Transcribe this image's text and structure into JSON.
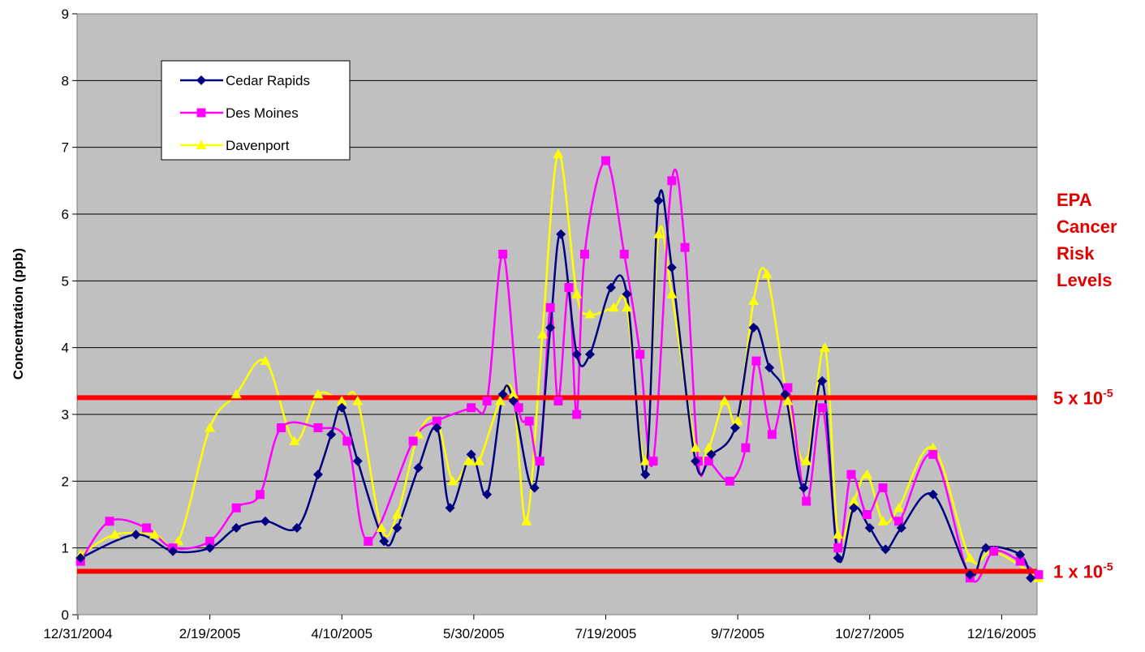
{
  "chart_data": {
    "type": "line",
    "title": "",
    "xlabel": "",
    "ylabel": "Concentration (ppb)",
    "ylim": [
      0,
      9
    ],
    "yticks": [
      "0",
      "1",
      "2",
      "3",
      "4",
      "5",
      "6",
      "7",
      "8",
      "9"
    ],
    "xticks": [
      "12/31/2004",
      "2/19/2005",
      "4/10/2005",
      "5/30/2005",
      "7/19/2005",
      "9/7/2005",
      "10/27/2005",
      "12/16/2005"
    ],
    "x_is_date": true,
    "grid": "horizontal",
    "legend_position": "top-left",
    "background": "#c0c0c0",
    "series": [
      {
        "name": "Cedar Rapids",
        "color": "#000080",
        "marker": "diamond",
        "points": [
          [
            "2005-01-01",
            0.85
          ],
          [
            "2005-01-22",
            1.2
          ],
          [
            "2005-02-05",
            0.95
          ],
          [
            "2005-02-19",
            1.0
          ],
          [
            "2005-03-01",
            1.3
          ],
          [
            "2005-03-12",
            1.4
          ],
          [
            "2005-03-24",
            1.3
          ],
          [
            "2005-04-01",
            2.1
          ],
          [
            "2005-04-06",
            2.7
          ],
          [
            "2005-04-10",
            3.1
          ],
          [
            "2005-04-16",
            2.3
          ],
          [
            "2005-04-26",
            1.1
          ],
          [
            "2005-05-01",
            1.3
          ],
          [
            "2005-05-09",
            2.2
          ],
          [
            "2005-05-16",
            2.8
          ],
          [
            "2005-05-21",
            1.6
          ],
          [
            "2005-05-29",
            2.4
          ],
          [
            "2005-06-04",
            1.8
          ],
          [
            "2005-06-10",
            3.3
          ],
          [
            "2005-06-14",
            3.2
          ],
          [
            "2005-06-22",
            1.9
          ],
          [
            "2005-06-28",
            4.3
          ],
          [
            "2005-07-02",
            5.7
          ],
          [
            "2005-07-08",
            3.9
          ],
          [
            "2005-07-13",
            3.9
          ],
          [
            "2005-07-21",
            4.9
          ],
          [
            "2005-07-27",
            4.8
          ],
          [
            "2005-08-03",
            2.1
          ],
          [
            "2005-08-08",
            6.2
          ],
          [
            "2005-08-13",
            5.2
          ],
          [
            "2005-08-22",
            2.3
          ],
          [
            "2005-08-28",
            2.4
          ],
          [
            "2005-09-06",
            2.8
          ],
          [
            "2005-09-13",
            4.3
          ],
          [
            "2005-09-19",
            3.7
          ],
          [
            "2005-09-25",
            3.3
          ],
          [
            "2005-10-02",
            1.9
          ],
          [
            "2005-10-09",
            3.5
          ],
          [
            "2005-10-15",
            0.85
          ],
          [
            "2005-10-21",
            1.6
          ],
          [
            "2005-10-27",
            1.3
          ],
          [
            "2005-11-02",
            0.98
          ],
          [
            "2005-11-08",
            1.3
          ],
          [
            "2005-11-20",
            1.8
          ],
          [
            "2005-12-04",
            0.6
          ],
          [
            "2005-12-10",
            1.0
          ],
          [
            "2005-12-23",
            0.9
          ],
          [
            "2005-12-27",
            0.55
          ]
        ]
      },
      {
        "name": "Des Moines",
        "color": "#ff00ff",
        "marker": "square",
        "points": [
          [
            "2005-01-01",
            0.8
          ],
          [
            "2005-01-12",
            1.4
          ],
          [
            "2005-01-26",
            1.3
          ],
          [
            "2005-02-05",
            1.0
          ],
          [
            "2005-02-19",
            1.1
          ],
          [
            "2005-03-01",
            1.6
          ],
          [
            "2005-03-10",
            1.8
          ],
          [
            "2005-03-18",
            2.8
          ],
          [
            "2005-04-01",
            2.8
          ],
          [
            "2005-04-12",
            2.6
          ],
          [
            "2005-04-20",
            1.1
          ],
          [
            "2005-05-07",
            2.6
          ],
          [
            "2005-05-16",
            2.9
          ],
          [
            "2005-05-29",
            3.1
          ],
          [
            "2005-06-04",
            3.2
          ],
          [
            "2005-06-10",
            5.4
          ],
          [
            "2005-06-16",
            3.1
          ],
          [
            "2005-06-20",
            2.9
          ],
          [
            "2005-06-24",
            2.3
          ],
          [
            "2005-06-28",
            4.6
          ],
          [
            "2005-07-01",
            3.2
          ],
          [
            "2005-07-05",
            4.9
          ],
          [
            "2005-07-08",
            3.0
          ],
          [
            "2005-07-11",
            5.4
          ],
          [
            "2005-07-19",
            6.8
          ],
          [
            "2005-07-26",
            5.4
          ],
          [
            "2005-08-01",
            3.9
          ],
          [
            "2005-08-06",
            2.3
          ],
          [
            "2005-08-13",
            6.5
          ],
          [
            "2005-08-18",
            5.5
          ],
          [
            "2005-08-23",
            2.3
          ],
          [
            "2005-08-27",
            2.3
          ],
          [
            "2005-09-04",
            2.0
          ],
          [
            "2005-09-10",
            2.5
          ],
          [
            "2005-09-14",
            3.8
          ],
          [
            "2005-09-20",
            2.7
          ],
          [
            "2005-09-26",
            3.4
          ],
          [
            "2005-10-03",
            1.7
          ],
          [
            "2005-10-09",
            3.1
          ],
          [
            "2005-10-15",
            1.0
          ],
          [
            "2005-10-20",
            2.1
          ],
          [
            "2005-10-26",
            1.5
          ],
          [
            "2005-11-01",
            1.9
          ],
          [
            "2005-11-07",
            1.4
          ],
          [
            "2005-11-20",
            2.4
          ],
          [
            "2005-12-04",
            0.55
          ],
          [
            "2005-12-13",
            0.95
          ],
          [
            "2005-12-23",
            0.8
          ],
          [
            "2005-12-30",
            0.6
          ]
        ]
      },
      {
        "name": "Davenport",
        "color": "#ffff00",
        "marker": "triangle",
        "points": [
          [
            "2005-01-01",
            0.9
          ],
          [
            "2005-01-14",
            1.2
          ],
          [
            "2005-01-29",
            1.2
          ],
          [
            "2005-02-07",
            1.1
          ],
          [
            "2005-02-19",
            2.8
          ],
          [
            "2005-03-01",
            3.3
          ],
          [
            "2005-03-12",
            3.8
          ],
          [
            "2005-03-23",
            2.6
          ],
          [
            "2005-04-01",
            3.3
          ],
          [
            "2005-04-10",
            3.2
          ],
          [
            "2005-04-16",
            3.2
          ],
          [
            "2005-04-25",
            1.3
          ],
          [
            "2005-05-01",
            1.5
          ],
          [
            "2005-05-09",
            2.7
          ],
          [
            "2005-05-16",
            2.9
          ],
          [
            "2005-05-22",
            2.0
          ],
          [
            "2005-05-28",
            2.3
          ],
          [
            "2005-06-01",
            2.3
          ],
          [
            "2005-06-09",
            3.2
          ],
          [
            "2005-06-14",
            3.3
          ],
          [
            "2005-06-19",
            1.4
          ],
          [
            "2005-06-25",
            4.2
          ],
          [
            "2005-07-01",
            6.9
          ],
          [
            "2005-07-08",
            4.8
          ],
          [
            "2005-07-13",
            4.5
          ],
          [
            "2005-07-22",
            4.6
          ],
          [
            "2005-07-27",
            4.6
          ],
          [
            "2005-08-03",
            2.3
          ],
          [
            "2005-08-08",
            5.7
          ],
          [
            "2005-08-13",
            4.8
          ],
          [
            "2005-08-22",
            2.5
          ],
          [
            "2005-08-27",
            2.5
          ],
          [
            "2005-09-02",
            3.2
          ],
          [
            "2005-09-07",
            2.9
          ],
          [
            "2005-09-13",
            4.7
          ],
          [
            "2005-09-18",
            5.1
          ],
          [
            "2005-09-26",
            3.2
          ],
          [
            "2005-10-03",
            2.3
          ],
          [
            "2005-10-10",
            4.0
          ],
          [
            "2005-10-15",
            1.2
          ],
          [
            "2005-10-21",
            1.7
          ],
          [
            "2005-10-26",
            2.1
          ],
          [
            "2005-11-01",
            1.4
          ],
          [
            "2005-11-07",
            1.6
          ],
          [
            "2005-11-20",
            2.5
          ],
          [
            "2005-12-04",
            0.85
          ],
          [
            "2005-12-13",
            0.95
          ],
          [
            "2005-12-30",
            0.55
          ]
        ]
      }
    ],
    "reference_lines": [
      {
        "label_main": "5 x 10",
        "label_exp": "-5",
        "value": 3.25,
        "color": "#ff0000"
      },
      {
        "label_main": "1 x 10",
        "label_exp": "-5",
        "value": 0.65,
        "color": "#ff0000"
      }
    ],
    "side_title_lines": [
      "EPA",
      "Cancer",
      "Risk",
      "Levels"
    ]
  }
}
